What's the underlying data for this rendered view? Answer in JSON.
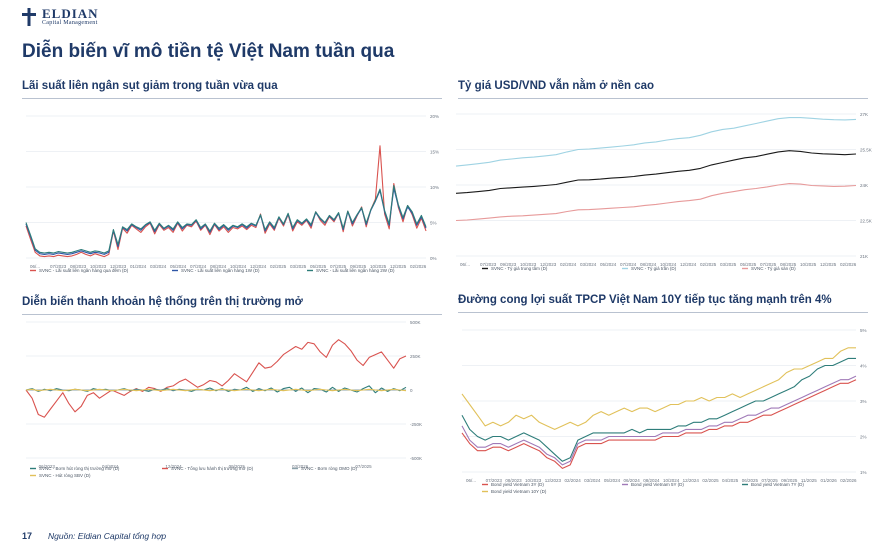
{
  "brand": {
    "name": "ELDIAN",
    "tagline": "Capital Management"
  },
  "page": {
    "title": "Diễn biến vĩ mô tiền tệ Việt Nam tuần qua",
    "page_number": "17",
    "source": "Nguồn: Eldian Capital tổng hợp"
  },
  "colors": {
    "navy": "#1f3a68",
    "red": "#d9534f",
    "teal": "#2e7d7a",
    "blue": "#2f56a6",
    "lightblue": "#9fd3e3",
    "pink": "#e79a9a",
    "black": "#1a1a1a",
    "yellow": "#e1c15a",
    "purple": "#a07ab8",
    "gray": "#8aa0a8"
  },
  "chart_data": [
    {
      "id": "interbank",
      "type": "line",
      "title": "Lãi suất liên ngân sụt giảm trong tuần vừa qua",
      "x_ticks": [
        "06/...",
        "07/2023",
        "08/2023",
        "10/2023",
        "12/2023",
        "01/2024",
        "03/2024",
        "05/2024",
        "07/2024",
        "08/2024",
        "10/2024",
        "12/2024",
        "02/2025",
        "03/2025",
        "05/2025",
        "07/2025",
        "09/2025",
        "10/2025",
        "12/2025",
        "02/2026"
      ],
      "y_ticks": [
        "20%",
        "15%",
        "10%",
        "5%",
        "0%"
      ],
      "ylim": [
        0,
        20
      ],
      "legend": [
        "SVNC - Lãi suất liên ngân hàng qua đêm (D)",
        "SVNC - Lãi suất liên ngân hàng 1W (D)",
        "SVNC - Lãi suất liên ngân hàng 2W (D)"
      ],
      "series": [
        {
          "name": "SVNC - Lãi suất liên ngân hàng qua đêm (D)",
          "color": "#d9534f",
          "values": [
            4.5,
            2.6,
            0.8,
            0.3,
            0.2,
            0.3,
            0.2,
            0.4,
            0.3,
            0.2,
            0.3,
            0.5,
            0.8,
            0.5,
            0.3,
            0.6,
            0.4,
            0.2,
            0.5,
            3.8,
            1.2,
            4.2,
            3.5,
            4.6,
            4.1,
            3.6,
            4.4,
            4.9,
            3.4,
            4.7,
            3.9,
            4.3,
            3.6,
            4.9,
            3.8,
            4.6,
            4.4,
            5.2,
            3.9,
            4.6,
            3.3,
            4.7,
            3.8,
            4.4,
            3.6,
            4.3,
            4.1,
            4.5,
            4.0,
            4.6,
            4.3,
            6.2,
            3.5,
            4.8,
            3.9,
            5.6,
            4.5,
            6.1,
            3.8,
            5.1,
            4.6,
            5.3,
            4.2,
            6.5,
            5.3,
            4.6,
            5.8,
            5.1,
            6.3,
            3.7,
            6.6,
            4.5,
            5.9,
            7.2,
            4.4,
            6.8,
            8.3,
            15.8,
            6.2,
            4.1,
            10.5,
            7.1,
            5.1,
            7.4,
            6.1,
            4.2,
            5.6,
            3.8
          ]
        },
        {
          "name": "SVNC - Lãi suất liên ngân hàng 1W (D)",
          "color": "#2f56a6",
          "values": [
            4.8,
            3.0,
            1.1,
            0.6,
            0.5,
            0.6,
            0.5,
            0.7,
            0.6,
            0.5,
            0.6,
            0.8,
            1.0,
            0.8,
            0.6,
            0.8,
            0.7,
            0.5,
            0.8,
            3.9,
            1.6,
            4.3,
            3.8,
            4.7,
            4.3,
            3.9,
            4.6,
            5.0,
            3.7,
            4.8,
            4.1,
            4.5,
            3.9,
            5.0,
            4.1,
            4.7,
            4.6,
            5.3,
            4.1,
            4.7,
            3.6,
            4.8,
            4.0,
            4.6,
            3.9,
            4.5,
            4.3,
            4.7,
            4.2,
            4.8,
            4.5,
            6.0,
            3.8,
            5.0,
            4.1,
            5.7,
            4.7,
            6.2,
            4.1,
            5.3,
            4.8,
            5.4,
            4.5,
            6.4,
            5.5,
            4.9,
            5.9,
            5.3,
            6.3,
            4.0,
            6.5,
            4.8,
            6.0,
            7.0,
            4.7,
            6.7,
            8.0,
            9.5,
            6.5,
            4.6,
            9.8,
            7.3,
            5.5,
            7.2,
            6.3,
            4.6,
            5.8,
            4.2
          ]
        },
        {
          "name": "SVNC - Lãi suất liên ngân hàng 2W (D)",
          "color": "#2e7d7a",
          "values": [
            5.0,
            3.2,
            1.3,
            0.8,
            0.7,
            0.8,
            0.7,
            0.9,
            0.8,
            0.7,
            0.8,
            1.0,
            1.2,
            1.0,
            0.8,
            1.0,
            0.9,
            0.7,
            1.0,
            4.0,
            1.9,
            4.4,
            4.0,
            4.8,
            4.4,
            4.1,
            4.7,
            5.1,
            3.9,
            4.9,
            4.2,
            4.6,
            4.1,
            5.1,
            4.3,
            4.8,
            4.7,
            5.4,
            4.3,
            4.8,
            3.8,
            4.9,
            4.2,
            4.7,
            4.1,
            4.6,
            4.4,
            4.8,
            4.4,
            4.9,
            4.6,
            6.1,
            4.0,
            5.1,
            4.3,
            5.8,
            4.8,
            6.3,
            4.3,
            5.4,
            4.9,
            5.5,
            4.7,
            6.5,
            5.6,
            5.0,
            6.0,
            5.4,
            6.4,
            4.2,
            6.6,
            5.0,
            6.1,
            7.1,
            4.9,
            6.8,
            8.1,
            9.7,
            6.7,
            4.8,
            10.2,
            7.5,
            5.7,
            7.4,
            6.5,
            4.8,
            6.0,
            4.4
          ]
        }
      ]
    },
    {
      "id": "fx",
      "type": "line",
      "title": "Tỷ giá USD/VND vẫn nằm ở nền cao",
      "x_ticks": [
        "06/...",
        "07/2023",
        "09/2023",
        "10/2023",
        "12/2023",
        "02/2024",
        "03/2024",
        "05/2024",
        "07/2024",
        "08/2024",
        "10/2024",
        "12/2024",
        "02/2025",
        "03/2025",
        "05/2025",
        "07/2025",
        "08/2025",
        "10/2025",
        "12/2025",
        "02/2026"
      ],
      "y_ticks": [
        "27K",
        "25.5K",
        "24K",
        "22.5K",
        "21K"
      ],
      "ylim": [
        21000,
        27000
      ],
      "legend": [
        "SVNC - Tỷ giá trung tâm (D)",
        "SVNC - Tỷ giá trần (D)",
        "SVNC - Tỷ giá sàn (D)"
      ],
      "series": [
        {
          "name": "SVNC - Tỷ giá trần (D)",
          "color": "#9fd3e3",
          "values": [
            24800,
            24850,
            24900,
            24960,
            25050,
            25100,
            25150,
            25180,
            25230,
            25280,
            25400,
            25500,
            25520,
            25560,
            25600,
            25650,
            25700,
            25780,
            25820,
            25900,
            25960,
            26000,
            26100,
            26250,
            26350,
            26400,
            26500,
            26600,
            26700,
            26800,
            26850,
            26850,
            26820,
            26780,
            26760,
            26750,
            26770
          ]
        },
        {
          "name": "SVNC - Tỷ giá trung tâm (D)",
          "color": "#1a1a1a",
          "values": [
            23650,
            23680,
            23720,
            23770,
            23850,
            23880,
            23910,
            23940,
            23980,
            24020,
            24120,
            24210,
            24220,
            24250,
            24290,
            24320,
            24360,
            24420,
            24460,
            24520,
            24580,
            24620,
            24700,
            24850,
            24950,
            25050,
            25150,
            25200,
            25300,
            25400,
            25450,
            25420,
            25350,
            25320,
            25300,
            25280,
            25310
          ]
        },
        {
          "name": "SVNC - Tỷ giá sàn (D)",
          "color": "#e79a9a",
          "values": [
            22500,
            22520,
            22560,
            22600,
            22650,
            22680,
            22700,
            22730,
            22760,
            22790,
            22880,
            22950,
            22960,
            22990,
            23020,
            23050,
            23080,
            23140,
            23180,
            23240,
            23300,
            23340,
            23400,
            23550,
            23650,
            23720,
            23800,
            23850,
            23920,
            24000,
            24060,
            24040,
            23980,
            23960,
            23940,
            23950,
            23980
          ]
        }
      ]
    },
    {
      "id": "liquidity",
      "type": "line",
      "title": "Diễn biến thanh khoản hệ thống trên thị trường mở",
      "x_ticks": [
        "06/2023",
        "04/2024",
        "12/2024",
        "09/2025",
        "03/2026",
        "07/2025"
      ],
      "y_ticks": [
        "500K",
        "250K",
        "0",
        "-250K",
        "-500K"
      ],
      "ylim": [
        -500000,
        500000
      ],
      "legend": [
        "SVNC - Bơm hút ròng thị trường mở (D)",
        "SVNC - Tổng lưu hành thị trường mở (D)",
        "SVNC - Bơm ròng OMO (D)",
        "SVNC - Hút ròng SBV (D)"
      ],
      "series": [
        {
          "name": "SVNC - Tổng lưu hành thị trường mở (D)",
          "color": "#d9534f",
          "values": [
            0,
            -60,
            -180,
            -200,
            -140,
            -80,
            -20,
            -100,
            -160,
            -120,
            -40,
            -20,
            -60,
            -30,
            0,
            -20,
            -40,
            -10,
            10,
            -10,
            20,
            10,
            -10,
            20,
            30,
            60,
            80,
            50,
            20,
            40,
            70,
            60,
            30,
            70,
            120,
            90,
            60,
            130,
            200,
            160,
            170,
            210,
            260,
            290,
            320,
            300,
            350,
            340,
            280,
            240,
            330,
            370,
            340,
            290,
            220,
            180,
            240,
            260,
            280,
            220,
            160,
            230,
            250
          ]
        },
        {
          "name": "SVNC - Bơm hút ròng thị trường mở (D)",
          "color": "#2e7d7a",
          "values": [
            0,
            10,
            -10,
            5,
            -5,
            10,
            0,
            -5,
            5,
            0,
            -10,
            10,
            0,
            5,
            -5,
            0,
            10,
            -5,
            5,
            0,
            -10,
            5,
            0,
            10,
            -5,
            5,
            0,
            -10,
            5,
            0,
            15,
            -5,
            10,
            -10,
            5,
            0,
            20,
            -10,
            10,
            -5,
            15,
            -15,
            10,
            20,
            -10,
            15,
            -20,
            10,
            5,
            -15,
            20,
            -10,
            15,
            0,
            -15,
            10,
            30,
            -20,
            15,
            -10,
            10,
            -5,
            20
          ]
        },
        {
          "name": "SVNC - Bơm ròng OMO (D)",
          "color": "#8aa0a8",
          "values": [
            0,
            0,
            0,
            0,
            0,
            0,
            0,
            0,
            0,
            0,
            0,
            0,
            0,
            0,
            0,
            0,
            0,
            0,
            0,
            0,
            0,
            0,
            0,
            0,
            0,
            0,
            0,
            0,
            0,
            0,
            0,
            0,
            0,
            0,
            0,
            0,
            0,
            0,
            0,
            0,
            0,
            0,
            0,
            0,
            0,
            0,
            0,
            0,
            0,
            0,
            0,
            0,
            0,
            0,
            0,
            0,
            0,
            0,
            0,
            0,
            0,
            0,
            0
          ]
        },
        {
          "name": "SVNC - Hút ròng SBV (D)",
          "color": "#e1c15a",
          "values": [
            0,
            5,
            -5,
            0,
            5,
            0,
            -5,
            0,
            5,
            0,
            -5,
            0,
            5,
            0,
            -5,
            0,
            5,
            0,
            -5,
            0,
            5,
            0,
            -5,
            0,
            5,
            0,
            -5,
            0,
            5,
            0,
            -5,
            0,
            5,
            0,
            -5,
            0,
            5,
            0,
            -5,
            0,
            5,
            0,
            -5,
            0,
            5,
            0,
            -5,
            0,
            5,
            0,
            -5,
            0,
            5,
            0,
            -5,
            0,
            5,
            0,
            -5,
            0,
            5,
            0,
            -5
          ]
        }
      ]
    },
    {
      "id": "yield",
      "type": "line",
      "title": "Đường cong lợi suất TPCP Việt Nam 10Y tiếp tục tăng mạnh trên 4%",
      "x_ticks": [
        "06/...",
        "07/2023",
        "08/2023",
        "10/2023",
        "12/2023",
        "02/2024",
        "03/2024",
        "05/2024",
        "06/2024",
        "08/2024",
        "10/2024",
        "12/2024",
        "02/2025",
        "04/2025",
        "06/2025",
        "07/2025",
        "09/2025",
        "11/2025",
        "01/2026",
        "02/2026"
      ],
      "y_ticks": [
        "5%",
        "4%",
        "3%",
        "2%",
        "1%"
      ],
      "ylim": [
        1,
        5
      ],
      "legend": [
        "Bond yield Vietnam 3Y (D)",
        "Bond yield Vietnam 5Y (D)",
        "Bond yield Vietnam 7Y (D)",
        "Bond yield Vietnam 10Y (D)"
      ],
      "series": [
        {
          "name": "Bond yield Vietnam 10Y (D)",
          "color": "#e1c15a",
          "values": [
            3.2,
            2.9,
            2.6,
            2.3,
            2.4,
            2.3,
            2.4,
            2.6,
            2.5,
            2.6,
            2.4,
            2.3,
            2.2,
            2.3,
            2.4,
            2.3,
            2.4,
            2.6,
            2.7,
            2.6,
            2.7,
            2.8,
            2.7,
            2.8,
            2.8,
            2.7,
            2.8,
            2.9,
            2.9,
            3.0,
            3.0,
            3.1,
            3.0,
            3.1,
            3.1,
            3.2,
            3.1,
            3.2,
            3.3,
            3.4,
            3.5,
            3.6,
            3.8,
            3.9,
            3.9,
            4.0,
            4.1,
            4.2,
            4.2,
            4.4,
            4.5,
            4.5
          ]
        },
        {
          "name": "Bond yield Vietnam 7Y (D)",
          "color": "#2e7d7a",
          "values": [
            2.6,
            2.2,
            2.0,
            1.9,
            2.0,
            2.0,
            1.9,
            2.0,
            2.1,
            2.0,
            1.9,
            1.7,
            1.5,
            1.3,
            1.4,
            1.9,
            2.0,
            2.1,
            2.1,
            2.1,
            2.1,
            2.1,
            2.2,
            2.1,
            2.2,
            2.2,
            2.2,
            2.2,
            2.3,
            2.3,
            2.4,
            2.4,
            2.5,
            2.5,
            2.6,
            2.7,
            2.8,
            2.9,
            3.0,
            3.0,
            3.1,
            3.2,
            3.3,
            3.4,
            3.6,
            3.7,
            3.9,
            4.0,
            4.0,
            4.1,
            4.2,
            4.2
          ]
        },
        {
          "name": "Bond yield Vietnam 5Y (D)",
          "color": "#a07ab8",
          "values": [
            2.3,
            1.9,
            1.7,
            1.7,
            1.8,
            1.8,
            1.7,
            1.8,
            1.9,
            1.8,
            1.7,
            1.5,
            1.4,
            1.2,
            1.3,
            1.8,
            1.9,
            1.9,
            1.9,
            2.0,
            2.0,
            2.0,
            2.0,
            2.0,
            2.0,
            2.0,
            2.1,
            2.1,
            2.1,
            2.2,
            2.2,
            2.2,
            2.3,
            2.3,
            2.4,
            2.4,
            2.5,
            2.6,
            2.6,
            2.7,
            2.8,
            2.8,
            2.9,
            3.0,
            3.1,
            3.2,
            3.3,
            3.4,
            3.5,
            3.6,
            3.6,
            3.7
          ]
        },
        {
          "name": "Bond yield Vietnam 3Y (D)",
          "color": "#d9534f",
          "values": [
            2.1,
            1.8,
            1.6,
            1.6,
            1.7,
            1.7,
            1.6,
            1.7,
            1.8,
            1.7,
            1.6,
            1.4,
            1.3,
            1.1,
            1.2,
            1.7,
            1.8,
            1.8,
            1.8,
            1.9,
            1.9,
            1.9,
            1.9,
            1.9,
            1.9,
            1.9,
            2.0,
            2.0,
            2.0,
            2.1,
            2.1,
            2.1,
            2.2,
            2.2,
            2.3,
            2.3,
            2.4,
            2.4,
            2.5,
            2.6,
            2.6,
            2.7,
            2.8,
            2.9,
            3.0,
            3.1,
            3.2,
            3.3,
            3.4,
            3.5,
            3.5,
            3.6
          ]
        }
      ]
    }
  ]
}
